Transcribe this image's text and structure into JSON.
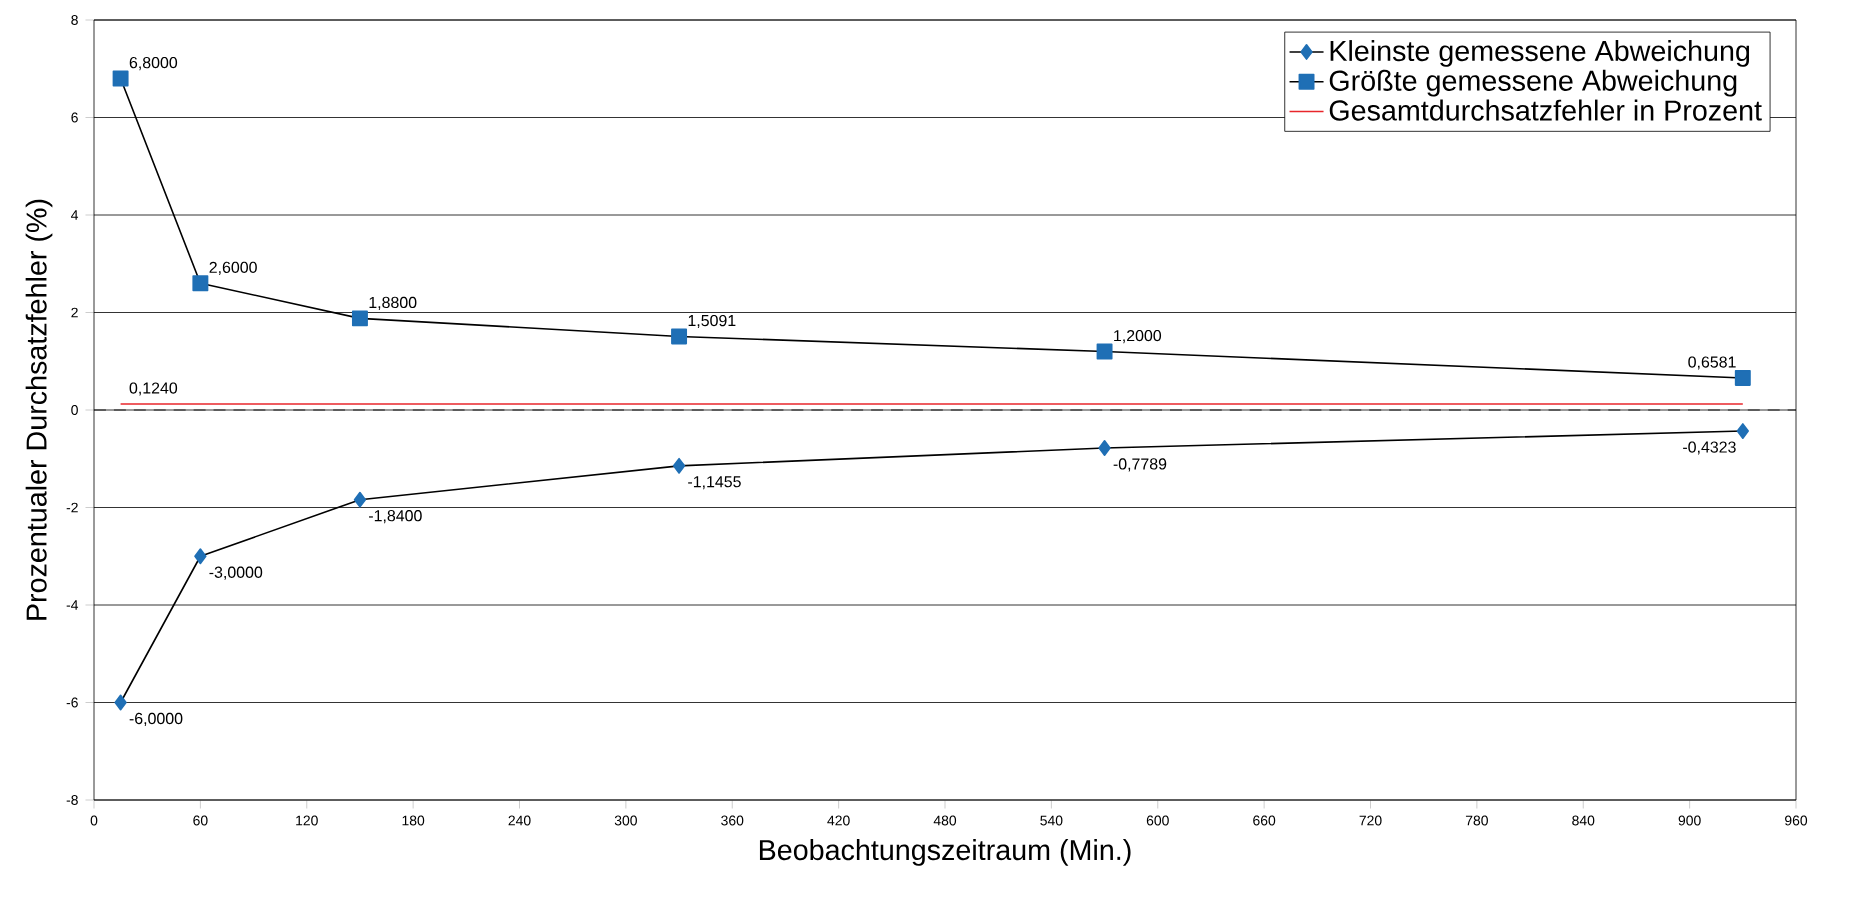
{
  "chart_data": {
    "type": "line",
    "xlabel": "Beobachtungszeitraum (Min.)",
    "ylabel": "Prozentualer Durchsatzfehler (%)",
    "x": [
      15,
      60,
      150,
      330,
      570,
      930
    ],
    "series": [
      {
        "name": "Kleinste gemessene Abweichung",
        "color": "#1f6fb5",
        "marker": "diamond",
        "values": [
          -6.0,
          -3.0,
          -1.84,
          -1.1455,
          -0.7789,
          -0.4323
        ],
        "value_labels": [
          "-6,0000",
          "-3,0000",
          "-1,8400",
          "-1,1455",
          "-0,7789",
          "-0,4323"
        ]
      },
      {
        "name": "Größte gemessene Abweichung",
        "color": "#1f6fb5",
        "marker": "square",
        "values": [
          6.8,
          2.6,
          1.88,
          1.5091,
          1.2,
          0.6581
        ],
        "value_labels": [
          "6,8000",
          "2,6000",
          "1,8800",
          "1,5091",
          "1,2000",
          "0,6581"
        ]
      },
      {
        "name": "Gesamtdurchsatzfehler in Prozent",
        "color": "#e8262b",
        "marker": "none",
        "x": [
          15,
          930
        ],
        "values": [
          0.124,
          0.124
        ],
        "value_labels": [
          "0,1240",
          null
        ]
      }
    ],
    "ref_lines": [
      {
        "axis": "y",
        "value": 0,
        "color": "#000000",
        "line_style": "dashed"
      }
    ],
    "xlim": [
      0,
      960
    ],
    "xticks": [
      0,
      60,
      120,
      180,
      240,
      300,
      360,
      420,
      480,
      540,
      600,
      660,
      720,
      780,
      840,
      900,
      960
    ],
    "ylim": [
      -8,
      8
    ],
    "yticks": [
      -8,
      -6,
      -4,
      -2,
      0,
      2,
      4,
      6,
      8
    ],
    "grid": "y",
    "legend": "top right"
  }
}
